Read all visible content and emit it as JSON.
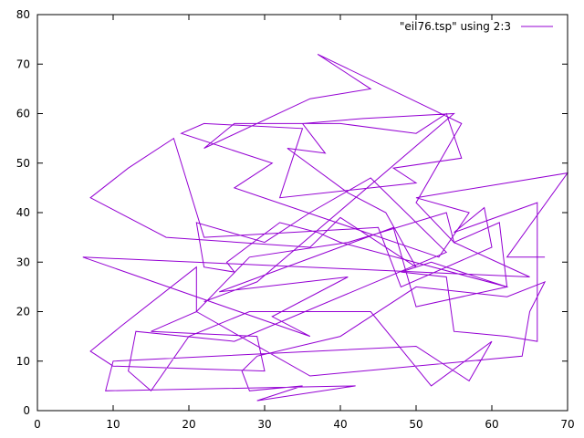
{
  "chart_data": {
    "type": "line",
    "title": "",
    "xlabel": "",
    "ylabel": "",
    "xlim": [
      0,
      70
    ],
    "ylim": [
      0,
      80
    ],
    "xticks": [
      0,
      10,
      20,
      30,
      40,
      50,
      60,
      70
    ],
    "yticks": [
      0,
      10,
      20,
      30,
      40,
      50,
      60,
      70,
      80
    ],
    "grid": false,
    "legend_position": "top-right",
    "series": [
      {
        "name": "\"eil76.tsp\" using 2:3",
        "color": "#9400d3",
        "x": [
          22,
          29,
          55,
          43,
          35,
          38,
          33,
          41,
          46,
          50,
          40,
          36,
          17,
          7,
          12,
          18,
          22,
          45,
          48,
          60,
          59,
          55,
          66,
          66,
          62,
          55,
          54,
          48,
          52,
          62,
          50,
          47,
          24,
          41,
          31,
          36,
          6,
          65,
          55,
          61,
          62,
          40,
          37,
          32,
          25,
          26,
          22,
          21,
          30,
          36,
          44,
          54,
          26,
          13,
          12,
          15,
          20,
          28,
          44,
          52,
          60,
          57,
          50,
          10,
          9,
          42,
          29,
          35,
          28,
          27,
          29,
          40,
          50,
          62,
          67,
          65,
          64,
          36,
          21,
          15,
          29,
          30,
          10,
          7,
          11,
          21,
          21,
          28,
          41,
          54,
          55,
          50,
          56,
          37,
          44,
          36,
          22,
          26,
          40,
          50,
          54,
          56,
          47,
          50,
          32,
          35,
          22,
          19,
          31,
          26,
          53,
          57,
          50,
          70,
          62,
          67
        ],
        "y": [
          22,
          26,
          60,
          59,
          58,
          52,
          53,
          44,
          40,
          29,
          39,
          33,
          35,
          43,
          49,
          55,
          35,
          37,
          25,
          33,
          41,
          36,
          42,
          14,
          15,
          16,
          27,
          28,
          30,
          25,
          21,
          37,
          24,
          27,
          19,
          15,
          31,
          27,
          34,
          38,
          25,
          34,
          36,
          38,
          30,
          28,
          29,
          38,
          34,
          40,
          47,
          32,
          14,
          16,
          8,
          4,
          15,
          20,
          20,
          5,
          14,
          6,
          13,
          10,
          4,
          5,
          2,
          5,
          4,
          8,
          11,
          15,
          25,
          23,
          26,
          20,
          11,
          7,
          20,
          16,
          15,
          8,
          9,
          12,
          17,
          29,
          20,
          31,
          34,
          40,
          34,
          42,
          58,
          72,
          65,
          63,
          53,
          58,
          58,
          56,
          60,
          51,
          49,
          46,
          43,
          57,
          58,
          56,
          50,
          45,
          31,
          40,
          43,
          48,
          31,
          31
        ]
      }
    ]
  }
}
